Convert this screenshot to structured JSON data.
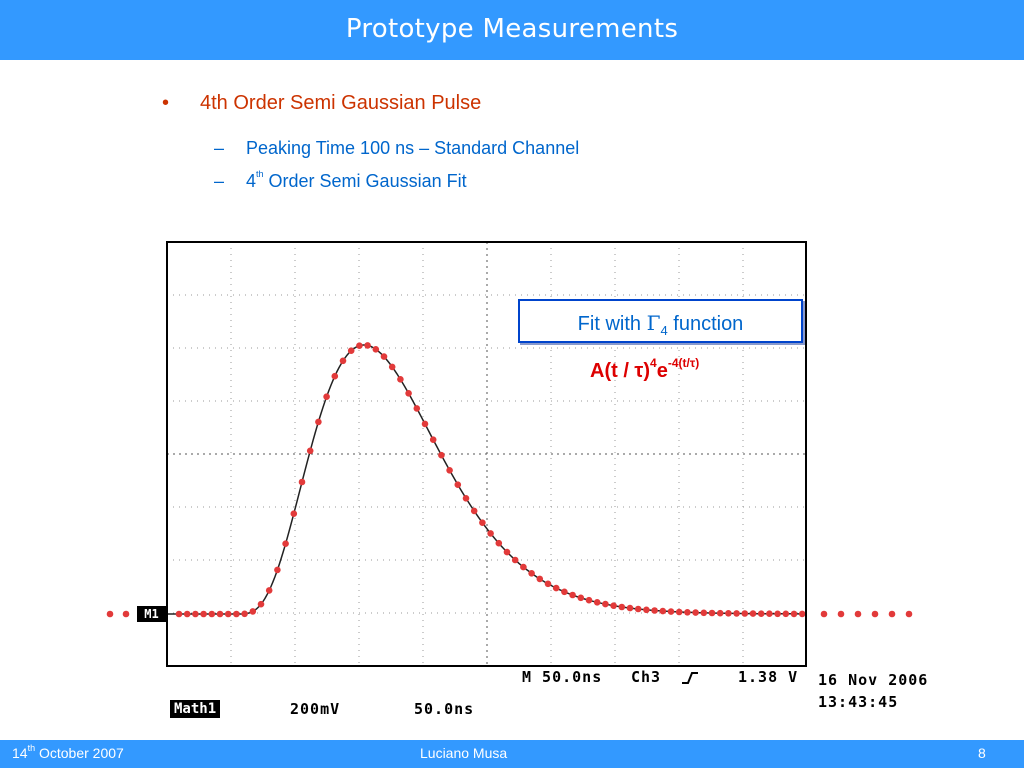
{
  "slide": {
    "title": "Prototype Measurements",
    "bullet_char": "•",
    "bullet": "4th Order Semi Gaussian Pulse",
    "sub_dash": "–",
    "sub1": "Peaking Time 100 ns – Standard Channel",
    "sub2_num": "4",
    "sub2_sup": "th",
    "sub2_rest": " Order Semi Gaussian Fit"
  },
  "scope": {
    "marker": "M1",
    "readout_time": "M 50.0ns",
    "readout_channel": "Ch3",
    "readout_trigger_icon": "rising-edge-icon",
    "readout_level": "1.38 V",
    "date": "16 Nov 2006",
    "time": "13:43:45",
    "math_label": "Math1",
    "math_volts": "200mV",
    "math_time": "50.0ns"
  },
  "annotation": {
    "box_prefix": "Fit with ",
    "gamma": "Γ",
    "gamma_sub": "4",
    "box_suffix": " function",
    "formula_base": "A(t / τ)",
    "formula_pow": "4",
    "formula_e": "e",
    "formula_exp": "-4(t/τ)"
  },
  "footer": {
    "date_num": "14",
    "date_sup": "th",
    "date_rest": " October 2007",
    "author": "Luciano Musa",
    "page": "8"
  },
  "colors": {
    "header": "#3399ff",
    "bullet": "#cc3300",
    "sub": "#0066cc",
    "fit_dots": "#e23a3a",
    "formula": "#dd0000"
  },
  "chart_data": {
    "type": "line",
    "description_series": [
      {
        "name": "",
        "kind": "measured-trace"
      },
      {
        "name": "",
        "kind": "fit-points"
      }
    ],
    "fit_function": "Gamma-4 semi gaussian",
    "grid": true
  }
}
